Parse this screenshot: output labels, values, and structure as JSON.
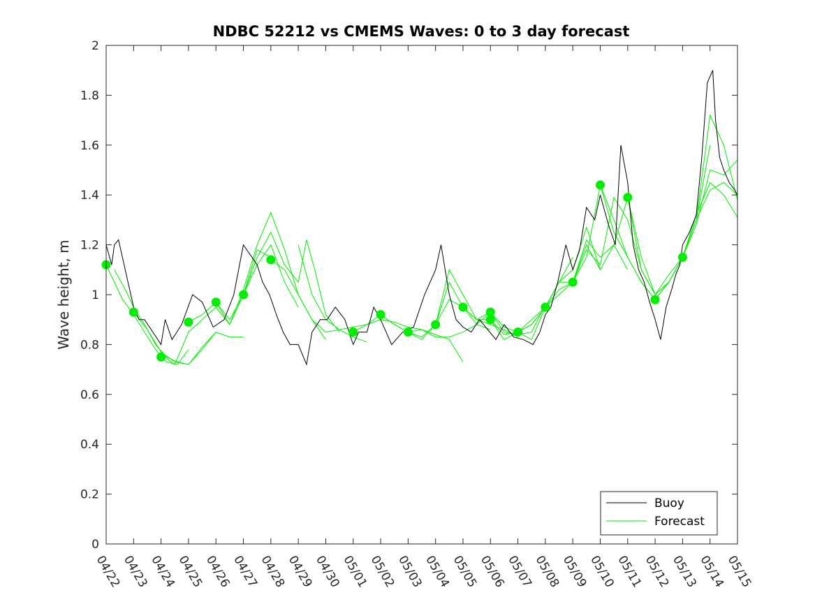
{
  "chart_data": {
    "type": "line",
    "title": "NDBC 52212 vs CMEMS Waves: 0 to 3 day forecast",
    "xlabel": "",
    "ylabel": "Wave height, m",
    "ylim": [
      0,
      2
    ],
    "yticks": [
      "0",
      "0.2",
      "0.4",
      "0.6",
      "0.8",
      "1",
      "1.2",
      "1.4",
      "1.6",
      "1.8",
      "2"
    ],
    "xticks": [
      "04/22",
      "04/23",
      "04/24",
      "04/25",
      "04/26",
      "04/27",
      "04/28",
      "04/29",
      "04/30",
      "05/01",
      "05/02",
      "05/03",
      "05/04",
      "05/05",
      "05/06",
      "05/07",
      "05/08",
      "05/09",
      "05/10",
      "05/11",
      "05/12",
      "05/13",
      "05/14",
      "05/15"
    ],
    "grid": false,
    "legend_position": "bottom-right",
    "colors": {
      "buoy": "#000000",
      "forecast": "#00ee00"
    },
    "series": [
      {
        "name": "Buoy",
        "x": [
          0,
          0.2,
          0.3,
          0.45,
          1.0,
          1.2,
          1.4,
          2.0,
          2.15,
          2.4,
          2.75,
          3.15,
          3.5,
          3.9,
          4.3,
          4.65,
          5.0,
          5.5,
          5.7,
          5.95,
          6.2,
          6.45,
          6.7,
          7.0,
          7.3,
          7.5,
          7.8,
          8.05,
          8.35,
          8.7,
          9.0,
          9.2,
          9.5,
          9.75,
          10.0,
          10.4,
          10.8,
          11.2,
          11.6,
          12.0,
          12.2,
          12.5,
          12.75,
          13.0,
          13.3,
          13.6,
          13.9,
          14.2,
          14.5,
          14.85,
          15.2,
          15.55,
          15.8,
          16.0,
          16.2,
          16.45,
          16.75,
          17.0,
          17.25,
          17.5,
          17.8,
          18.0,
          18.3,
          18.55,
          18.75,
          19.0,
          19.2,
          19.4,
          19.6,
          19.8,
          20.0,
          20.2,
          20.4,
          20.6,
          20.75,
          20.9,
          21.0,
          21.25,
          21.5,
          21.7,
          21.9,
          22.1,
          22.2,
          22.35,
          22.5,
          22.7,
          22.9,
          23.0
        ],
        "values": [
          1.2,
          1.12,
          1.2,
          1.22,
          0.95,
          0.9,
          0.9,
          0.8,
          0.9,
          0.82,
          0.88,
          1.0,
          0.97,
          0.87,
          0.9,
          1.0,
          1.2,
          1.12,
          1.05,
          1.0,
          0.92,
          0.85,
          0.8,
          0.8,
          0.72,
          0.85,
          0.9,
          0.9,
          0.95,
          0.9,
          0.8,
          0.85,
          0.85,
          0.95,
          0.9,
          0.8,
          0.85,
          0.87,
          1.0,
          1.1,
          1.2,
          1.0,
          0.9,
          0.87,
          0.85,
          0.9,
          0.86,
          0.82,
          0.88,
          0.83,
          0.82,
          0.8,
          0.85,
          0.92,
          0.95,
          1.05,
          1.2,
          1.1,
          1.18,
          1.35,
          1.3,
          1.4,
          1.28,
          1.2,
          1.6,
          1.45,
          1.2,
          1.1,
          1.05,
          0.97,
          0.9,
          0.82,
          0.95,
          1.02,
          1.08,
          1.12,
          1.2,
          1.25,
          1.32,
          1.55,
          1.85,
          1.9,
          1.7,
          1.55,
          1.5,
          1.45,
          1.42,
          1.4
        ]
      },
      {
        "name": "Forecast",
        "runs": [
          {
            "x": [
              0,
              0.3,
              0.6,
              1.0,
              1.4,
              1.8,
              2.2,
              2.6,
              3.0
            ],
            "values": [
              1.12,
              1.05,
              0.98,
              0.92,
              0.85,
              0.78,
              0.73,
              0.72,
              0.78
            ]
          },
          {
            "x": [
              0.3,
              0.7,
              1.0,
              1.4,
              1.8,
              2.2,
              2.6,
              3.0,
              3.5,
              4.0
            ],
            "values": [
              1.1,
              1.02,
              0.95,
              0.88,
              0.8,
              0.75,
              0.73,
              0.72,
              0.79,
              0.85
            ]
          },
          {
            "x": [
              1.0,
              1.5,
              2.0,
              2.5,
              3.0,
              3.5,
              4.0,
              4.5,
              5.0
            ],
            "values": [
              0.93,
              0.86,
              0.77,
              0.73,
              0.72,
              0.78,
              0.85,
              0.83,
              0.83
            ]
          },
          {
            "x": [
              2.0,
              2.5,
              3.0,
              3.5,
              4.0,
              4.5,
              5.0,
              5.5,
              6.0
            ],
            "values": [
              0.76,
              0.72,
              0.85,
              0.9,
              0.95,
              0.88,
              1.0,
              1.18,
              1.15
            ]
          },
          {
            "x": [
              3.0,
              3.5,
              4.0,
              4.5,
              5.0,
              5.5,
              6.0,
              6.5,
              7.0
            ],
            "values": [
              0.89,
              0.92,
              0.97,
              0.9,
              1.0,
              1.12,
              1.2,
              1.05,
              0.95
            ]
          },
          {
            "x": [
              4.0,
              4.5,
              5.0,
              5.5,
              6.0,
              6.5,
              7.0,
              7.5,
              8.0
            ],
            "values": [
              0.97,
              0.88,
              1.02,
              1.2,
              1.33,
              1.18,
              1.0,
              0.9,
              0.82
            ]
          },
          {
            "x": [
              5.0,
              5.5,
              6.0,
              6.5,
              7.0,
              7.3,
              7.6,
              8.0,
              8.5
            ],
            "values": [
              1.0,
              1.15,
              1.25,
              1.12,
              1.05,
              1.22,
              1.1,
              0.92,
              0.85
            ]
          },
          {
            "x": [
              6.0,
              6.5,
              7.0,
              7.5,
              8.0,
              8.5,
              9.0,
              9.5
            ],
            "values": [
              1.14,
              1.1,
              1.0,
              0.9,
              0.85,
              0.86,
              0.83,
              0.81
            ]
          },
          {
            "x": [
              7.0,
              7.5,
              8.0,
              8.5,
              9.0,
              9.5,
              10.0,
              10.5,
              11.0,
              11.5,
              12.0,
              12.5,
              13.0
            ],
            "values": [
              1.2,
              1.0,
              0.9,
              0.86,
              0.87,
              0.88,
              0.9,
              0.89,
              0.87,
              0.86,
              0.84,
              0.82,
              0.73
            ]
          },
          {
            "x": [
              9.0,
              9.5,
              10.0,
              10.5,
              11.0,
              11.5,
              12.0,
              12.5,
              13.0,
              13.5,
              14.0
            ],
            "values": [
              0.85,
              0.88,
              0.92,
              0.88,
              0.85,
              0.86,
              0.83,
              0.83,
              0.85,
              0.88,
              0.86
            ]
          },
          {
            "x": [
              10.0,
              10.5,
              11.0,
              11.5,
              12.0,
              12.5,
              13.0,
              13.5,
              14.0,
              14.5,
              15.0
            ],
            "values": [
              0.92,
              0.88,
              0.85,
              0.82,
              0.88,
              1.1,
              1.0,
              0.9,
              0.88,
              0.86,
              0.83
            ]
          },
          {
            "x": [
              11.0,
              11.5,
              12.0,
              12.5,
              13.0,
              13.5,
              14.0,
              14.5,
              15.0,
              15.5,
              16.0
            ],
            "values": [
              0.85,
              0.83,
              0.88,
              1.05,
              0.95,
              0.88,
              0.93,
              0.85,
              0.84,
              0.85,
              0.96
            ]
          },
          {
            "x": [
              12.0,
              12.5,
              13.0,
              13.5,
              14.0,
              14.5,
              15.0,
              15.5,
              16.0,
              16.5,
              17.0
            ],
            "values": [
              0.88,
              0.98,
              0.95,
              0.9,
              0.9,
              0.82,
              0.85,
              0.82,
              0.95,
              1.05,
              1.15
            ]
          },
          {
            "x": [
              13.0,
              13.5,
              14.0,
              14.5,
              15.0,
              15.5,
              16.0,
              16.5,
              17.0,
              17.5,
              18.0
            ],
            "values": [
              0.95,
              0.9,
              0.93,
              0.87,
              0.85,
              0.88,
              0.95,
              1.05,
              1.1,
              1.27,
              1.1
            ]
          },
          {
            "x": [
              14.0,
              14.5,
              15.0,
              15.5,
              16.0,
              16.5,
              17.0,
              17.5,
              18.0,
              18.5,
              19.0
            ],
            "values": [
              0.9,
              0.84,
              0.85,
              0.9,
              0.95,
              1.02,
              1.05,
              1.22,
              1.15,
              1.2,
              1.1
            ]
          },
          {
            "x": [
              15.0,
              15.5,
              16.0,
              16.5,
              17.0,
              17.5,
              18.0,
              18.5,
              19.0,
              19.5,
              20.0
            ],
            "values": [
              0.85,
              0.88,
              0.95,
              1.05,
              1.05,
              1.15,
              1.44,
              1.25,
              1.15,
              1.05,
              0.98
            ]
          },
          {
            "x": [
              16.0,
              16.5,
              17.0,
              17.5,
              18.0,
              18.5,
              19.0,
              19.5,
              20.0,
              20.5,
              21.0
            ],
            "values": [
              0.95,
              1.0,
              1.05,
              1.18,
              1.12,
              1.39,
              1.3,
              1.1,
              1.0,
              1.05,
              1.15
            ]
          },
          {
            "x": [
              17.0,
              17.5,
              18.0,
              18.5,
              19.0,
              19.5,
              20.0,
              20.5,
              21.0,
              21.5,
              22.0
            ],
            "values": [
              1.05,
              1.2,
              1.1,
              1.2,
              1.39,
              1.1,
              1.0,
              1.05,
              1.15,
              1.3,
              1.6
            ]
          },
          {
            "x": [
              18.0,
              18.5,
              19.0,
              19.5,
              20.0,
              20.5,
              21.0,
              21.5,
              22.0,
              22.5,
              23.0
            ],
            "values": [
              1.44,
              1.3,
              1.15,
              1.05,
              0.98,
              1.05,
              1.15,
              1.3,
              1.72,
              1.6,
              1.38
            ]
          },
          {
            "x": [
              19.0,
              19.5,
              20.0,
              20.5,
              21.0,
              21.5,
              22.0,
              22.5,
              23.0
            ],
            "values": [
              1.39,
              1.15,
              1.0,
              1.08,
              1.15,
              1.32,
              1.45,
              1.4,
              1.31
            ]
          },
          {
            "x": [
              20.0,
              20.5,
              21.0,
              21.5,
              22.0,
              22.5,
              23.0
            ],
            "values": [
              0.98,
              1.05,
              1.15,
              1.28,
              1.5,
              1.48,
              1.54
            ]
          },
          {
            "x": [
              21.0,
              21.5,
              22.0,
              22.5,
              23.0
            ],
            "values": [
              1.15,
              1.3,
              1.42,
              1.45,
              1.4
            ]
          }
        ],
        "markers": {
          "x": [
            0,
            1.0,
            2.0,
            3.0,
            4.0,
            5.0,
            6.0,
            9.0,
            10.0,
            11.0,
            12.0,
            13.0,
            14.0,
            14.0,
            15.0,
            16.0,
            17.0,
            18.0,
            19.0,
            20.0,
            21.0
          ],
          "values": [
            1.12,
            0.93,
            0.75,
            0.89,
            0.97,
            1.0,
            1.14,
            0.85,
            0.92,
            0.85,
            0.88,
            0.95,
            0.93,
            0.9,
            0.85,
            0.95,
            1.05,
            1.44,
            1.39,
            0.98,
            1.15
          ]
        }
      }
    ]
  }
}
